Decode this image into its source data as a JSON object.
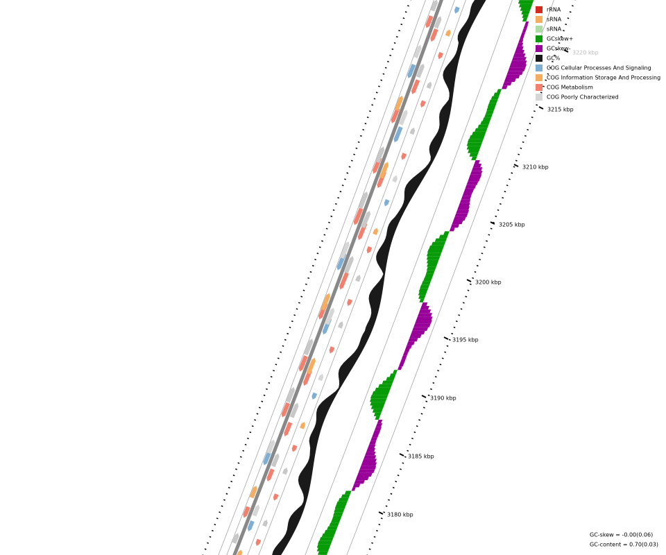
{
  "legend": [
    {
      "label": "rRNA",
      "color": "#d42a20"
    },
    {
      "label": "sRNA",
      "color": "#f5ad60"
    },
    {
      "label": "sRNA",
      "color": "#acdca4"
    },
    {
      "label": "GCskew+",
      "color": "#079b07"
    },
    {
      "label": "GCskew-",
      "color": "#990099"
    },
    {
      "label": "GC%",
      "color": "#1a1a1a"
    },
    {
      "label": "COG Cellular Processes And Signaling",
      "color": "#7eaed4"
    },
    {
      "label": "COG Information Storage And Processing",
      "color": "#f5ad60"
    },
    {
      "label": "COG Metabolism",
      "color": "#f2806e"
    },
    {
      "label": "COG Poorly Characterized",
      "color": "#d6d6d6"
    }
  ],
  "ruler": {
    "labels": [
      "3180 kbp",
      "3185 kbp",
      "3190 kbp",
      "3195 kbp",
      "3200 kbp",
      "3205 kbp",
      "3210 kbp",
      "3215 kbp",
      "3220 kbp"
    ]
  },
  "footer": {
    "gc_skew": "GC-skew = -0.00(0.06)",
    "gc_content": "GC-content = 0.70(0.03)"
  }
}
